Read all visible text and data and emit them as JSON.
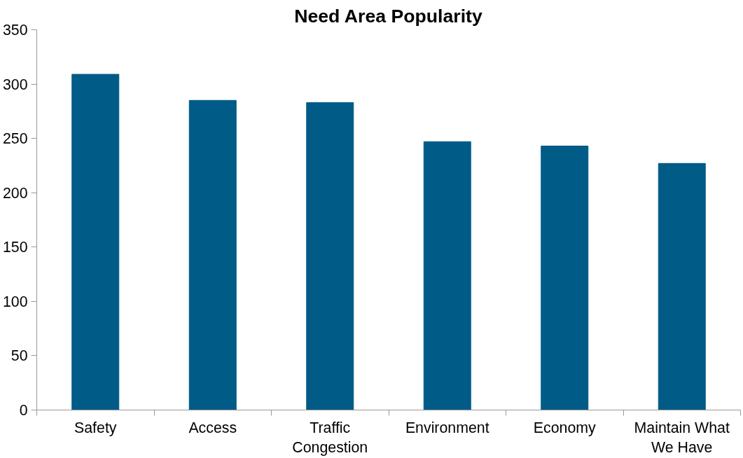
{
  "chart_data": {
    "type": "bar",
    "title": "Need Area Popularity",
    "categories": [
      "Safety",
      "Access",
      "Traffic Congestion",
      "Environment",
      "Economy",
      "Maintain What We Have"
    ],
    "values": [
      309,
      285,
      283,
      247,
      243,
      227
    ],
    "color": "#005b87",
    "ylim": [
      0,
      350
    ],
    "yticks": [
      0,
      50,
      100,
      150,
      200,
      250,
      300,
      350
    ],
    "grid": false,
    "legend": false
  }
}
